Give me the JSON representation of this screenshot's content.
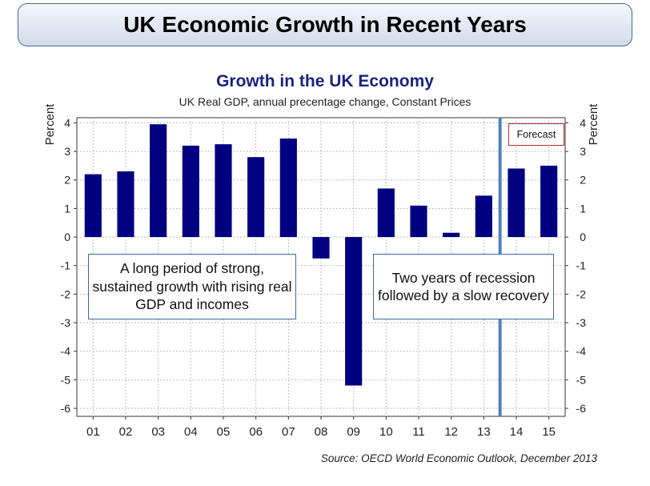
{
  "banner": {
    "title": "UK Economic Growth in Recent Years"
  },
  "chart_data": {
    "type": "bar",
    "title": "Growth in the UK Economy",
    "subtitle": "UK Real GDP, annual precentage change, Constant Prices",
    "categories": [
      "01",
      "02",
      "03",
      "04",
      "05",
      "06",
      "07",
      "08",
      "09",
      "10",
      "11",
      "12",
      "13",
      "14",
      "15"
    ],
    "values": [
      2.2,
      2.3,
      3.95,
      3.2,
      3.25,
      2.8,
      3.45,
      -0.75,
      -5.2,
      1.7,
      1.1,
      0.15,
      1.45,
      2.4,
      2.5
    ],
    "ylabel_left": "Percent",
    "ylabel_right": "Percent",
    "ylim": [
      -6,
      4
    ],
    "yticks": [
      4,
      3,
      2,
      1,
      0,
      -1,
      -2,
      -3,
      -4,
      -5,
      -6
    ],
    "grid": true,
    "bar_color": "#000080",
    "forecast_divider_color": "#4f81bd",
    "annotations": {
      "forecast": "Forecast",
      "callout_1": "A long period of strong, sustained growth with rising real GDP and incomes",
      "callout_2": "Two years of recession followed by a slow recovery"
    },
    "source": "Source: OECD World Economic Outlook, December 2013"
  }
}
